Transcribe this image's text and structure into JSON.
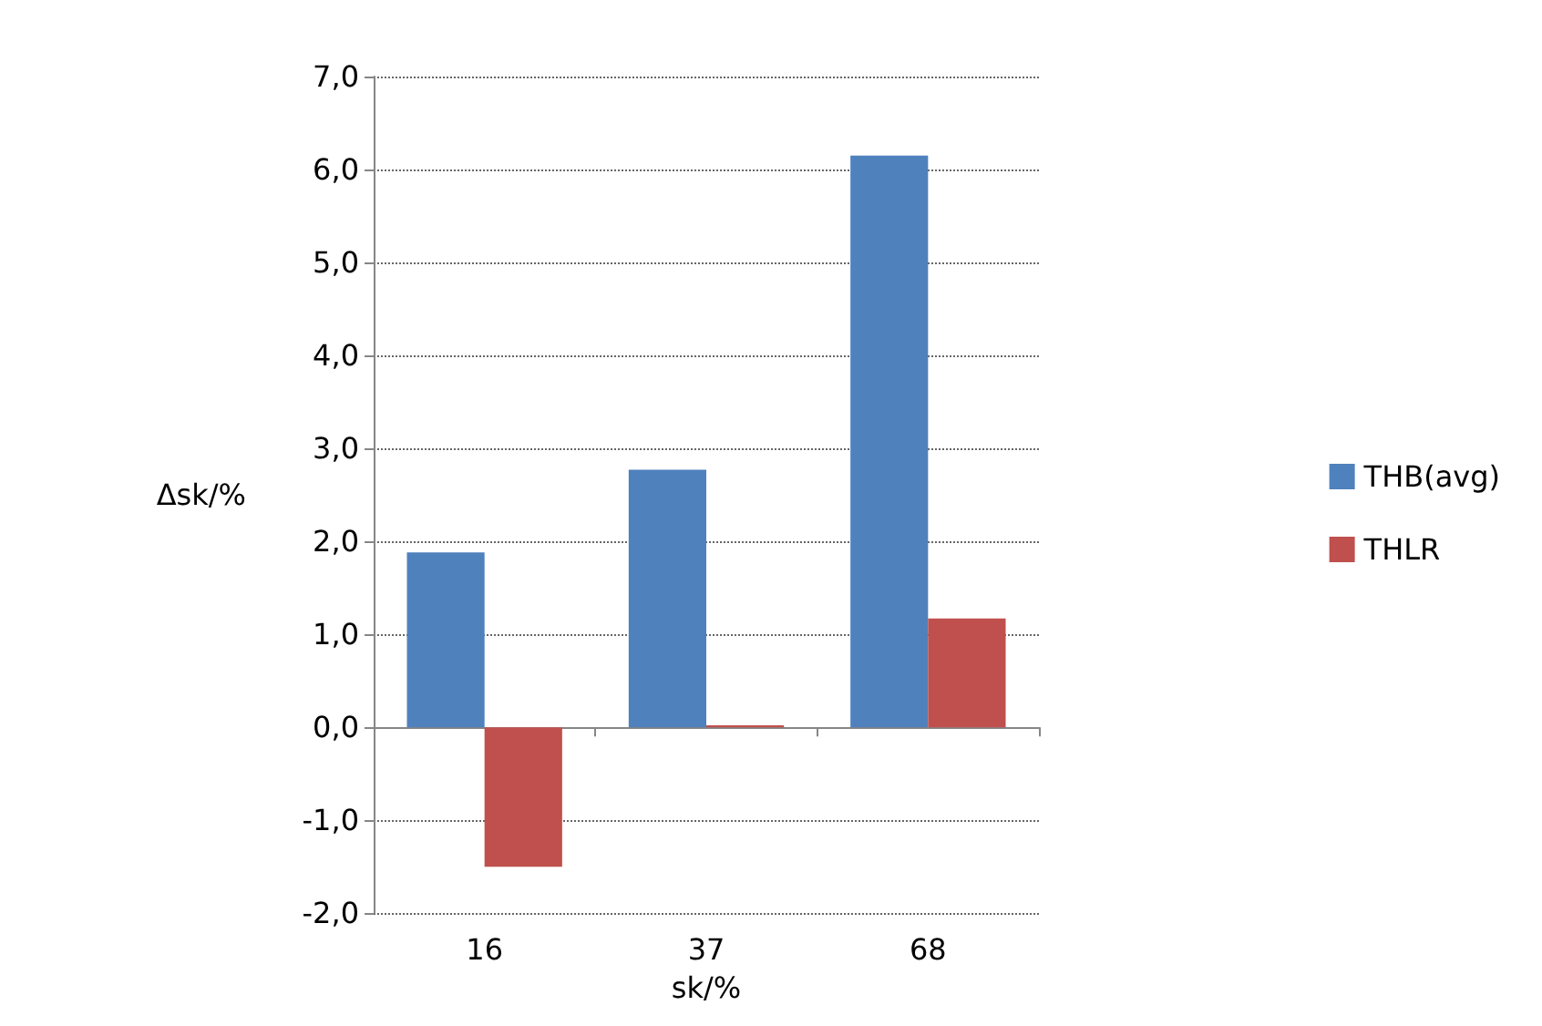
{
  "chart_data": {
    "type": "bar",
    "ylabel": "Δsk/%",
    "xlabel": "sk/%",
    "categories": [
      "16",
      "37",
      "68"
    ],
    "series": [
      {
        "name": "THB(avg)",
        "color": "#4f81bd",
        "values": [
          1.88,
          2.77,
          6.15
        ]
      },
      {
        "name": "THLR",
        "color": "#c0504d",
        "values": [
          -1.5,
          0.02,
          1.17
        ]
      }
    ],
    "ylim": [
      -2,
      7
    ],
    "yticks": [
      {
        "value": -2,
        "label": "-2,0"
      },
      {
        "value": -1,
        "label": "-1,0"
      },
      {
        "value": 0,
        "label": "0,0"
      },
      {
        "value": 1,
        "label": "1,0"
      },
      {
        "value": 2,
        "label": "2,0"
      },
      {
        "value": 3,
        "label": "3,0"
      },
      {
        "value": 4,
        "label": "4,0"
      },
      {
        "value": 5,
        "label": "5,0"
      },
      {
        "value": 6,
        "label": "6,0"
      },
      {
        "value": 7,
        "label": "7,0"
      }
    ],
    "grid": "y",
    "legend": "right"
  }
}
